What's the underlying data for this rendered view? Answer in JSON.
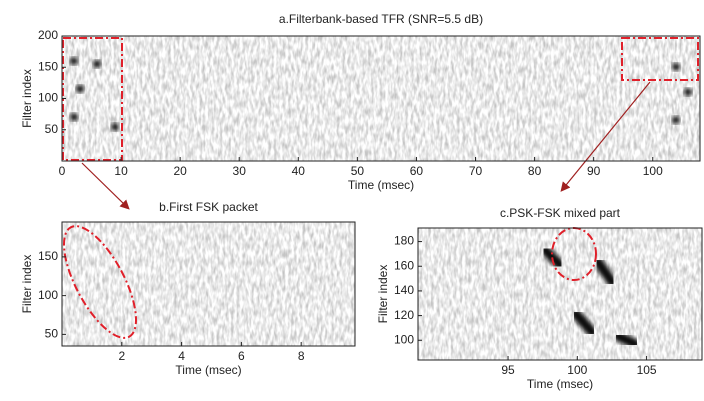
{
  "chart_data": [
    {
      "type": "heatmap",
      "title": "a.Filterbank-based TFR (SNR=5.5 dB)",
      "x_label": "Time (msec)",
      "y_label": "Filter index",
      "xlim": [
        0,
        108
      ],
      "ylim": [
        0,
        200
      ],
      "xticks": [
        0,
        10,
        20,
        30,
        40,
        50,
        60,
        70,
        80,
        90,
        100
      ],
      "yticks": [
        50,
        100,
        150,
        200
      ]
    },
    {
      "type": "heatmap",
      "title": "b.First FSK packet",
      "x_label": "Time (msec)",
      "y_label": "Filter index",
      "xlim": [
        0,
        9.8
      ],
      "ylim": [
        35,
        195
      ],
      "xticks": [
        2,
        4,
        6,
        8
      ],
      "yticks": [
        50,
        100,
        150
      ]
    },
    {
      "type": "heatmap",
      "title": "c.PSK-FSK mixed part",
      "x_label": "Time (msec)",
      "y_label": "Filter index",
      "xlim": [
        88.5,
        109
      ],
      "ylim": [
        84,
        191
      ],
      "xticks": [
        95,
        100,
        105
      ],
      "yticks": [
        100,
        120,
        140,
        160,
        180
      ]
    }
  ]
}
